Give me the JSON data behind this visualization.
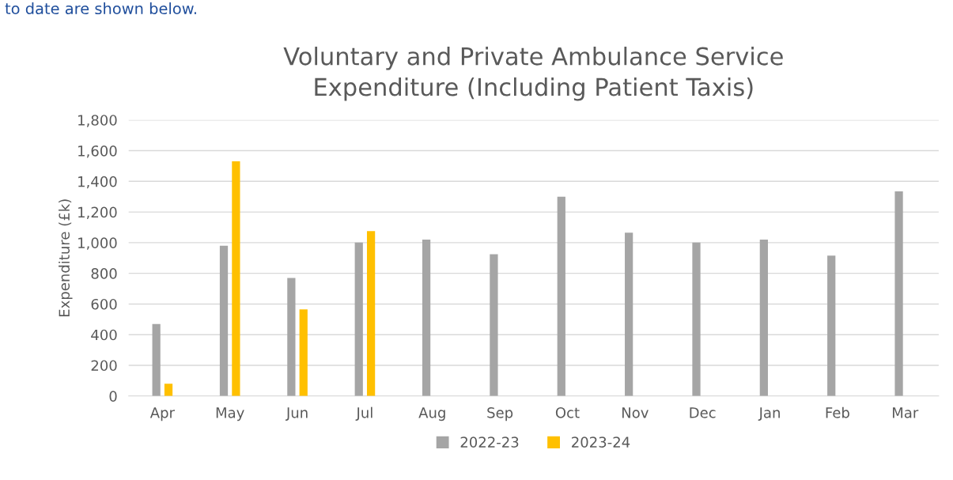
{
  "chart_data": {
    "type": "bar",
    "title": "Voluntary and Private Ambulance Service\nExpenditure (Including Patient Taxis)",
    "ylabel": "Expenditure (£k)",
    "annotations": [
      "to date are shown below."
    ],
    "categories": [
      "Apr",
      "May",
      "Jun",
      "Jul",
      "Aug",
      "Sep",
      "Oct",
      "Nov",
      "Dec",
      "Jan",
      "Feb",
      "Mar"
    ],
    "series": [
      {
        "name": "2022-23",
        "color": "#a5a5a5",
        "values": [
          470,
          980,
          770,
          1000,
          1020,
          925,
          1300,
          1065,
          1000,
          1020,
          915,
          1335
        ]
      },
      {
        "name": "2023-24",
        "color": "#ffc000",
        "values": [
          80,
          1530,
          565,
          1075,
          null,
          null,
          null,
          null,
          null,
          null,
          null,
          null
        ]
      }
    ],
    "ylim": [
      0,
      1800
    ],
    "yticks": [
      {
        "value": 0,
        "label": "0"
      },
      {
        "value": 200,
        "label": "200"
      },
      {
        "value": 400,
        "label": "400"
      },
      {
        "value": 600,
        "label": "600"
      },
      {
        "value": 800,
        "label": "800"
      },
      {
        "value": 1000,
        "label": "1,000"
      },
      {
        "value": 1200,
        "label": "1,200"
      },
      {
        "value": 1400,
        "label": "1,400"
      },
      {
        "value": 1600,
        "label": "1,600"
      },
      {
        "value": 1800,
        "label": "1,800"
      }
    ],
    "grid": "y",
    "legend": "bottom"
  }
}
